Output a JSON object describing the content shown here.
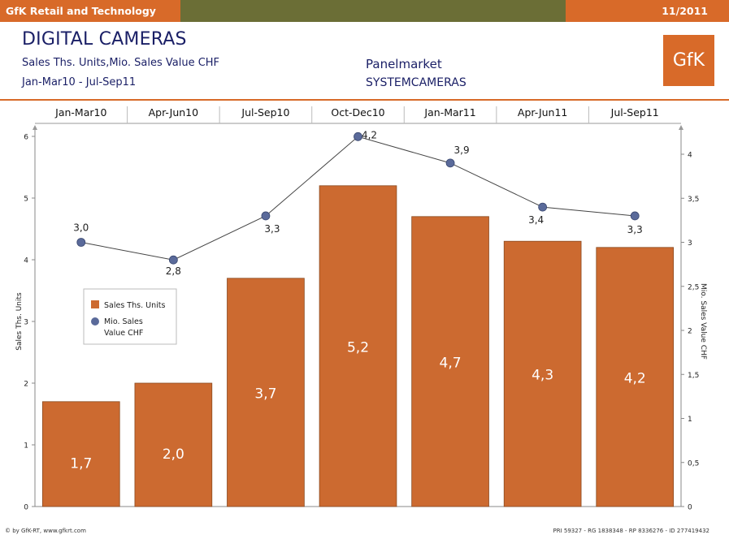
{
  "header": {
    "left_title": "GfK Retail and Technology",
    "date": "11/2011",
    "title": "DIGITAL CAMERAS",
    "subtitle": "Sales Ths. Units,Mio. Sales Value CHF",
    "period": "Jan-Mar10 - Jul-Sep11",
    "panel_label": "Panelmarket",
    "panel_value": "SYSTEMCAMERAS",
    "logo": "GfK"
  },
  "footer": {
    "left": "© by GfK-RT, www.gfkrt.com",
    "right": "PRI 59327 - RG 1838348 - RP 8336276 - ID 277419432"
  },
  "colors": {
    "accent": "#d86a29",
    "bar": "#cc6a30",
    "line_marker": "#5a6a9a",
    "header_mid": "#6b6e36"
  },
  "chart_data": {
    "type": "bar",
    "categories": [
      "Jan-Mar10",
      "Apr-Jun10",
      "Jul-Sep10",
      "Oct-Dec10",
      "Jan-Mar11",
      "Apr-Jun11",
      "Jul-Sep11"
    ],
    "series": [
      {
        "name": "Sales Ths. Units",
        "type": "bar",
        "axis": "left",
        "values": [
          1.7,
          2.0,
          3.7,
          5.2,
          4.7,
          4.3,
          4.2
        ],
        "labels": [
          "1,7",
          "2,0",
          "3,7",
          "5,2",
          "4,7",
          "4,3",
          "4,2"
        ]
      },
      {
        "name": "Mio. Sales Value CHF",
        "type": "line",
        "axis": "right",
        "values": [
          3.0,
          2.8,
          3.3,
          4.2,
          3.9,
          3.4,
          3.3
        ],
        "labels": [
          "3,0",
          "2,8",
          "3,3",
          "4,2",
          "3,9",
          "3,4",
          "3,3"
        ]
      }
    ],
    "ylabel": "Sales Ths. Units",
    "y2label": "Mio. Sales Value CHF",
    "ylim": [
      0,
      6
    ],
    "y2lim": [
      0,
      4.2
    ],
    "yticks": [
      0,
      1,
      2,
      3,
      4,
      5,
      6
    ],
    "yticklabels": [
      "0",
      "1",
      "2",
      "3",
      "4",
      "5",
      "6"
    ],
    "y2ticks": [
      0,
      0.5,
      1,
      1.5,
      2,
      2.5,
      3,
      3.5,
      4
    ],
    "y2ticklabels": [
      "0",
      "0,5",
      "1",
      "1,5",
      "2",
      "2,5",
      "3",
      "3,5",
      "4"
    ],
    "legend": {
      "placement": "left",
      "entries": [
        "Sales Ths. Units",
        "Mio. Sales",
        "Value CHF"
      ]
    }
  }
}
